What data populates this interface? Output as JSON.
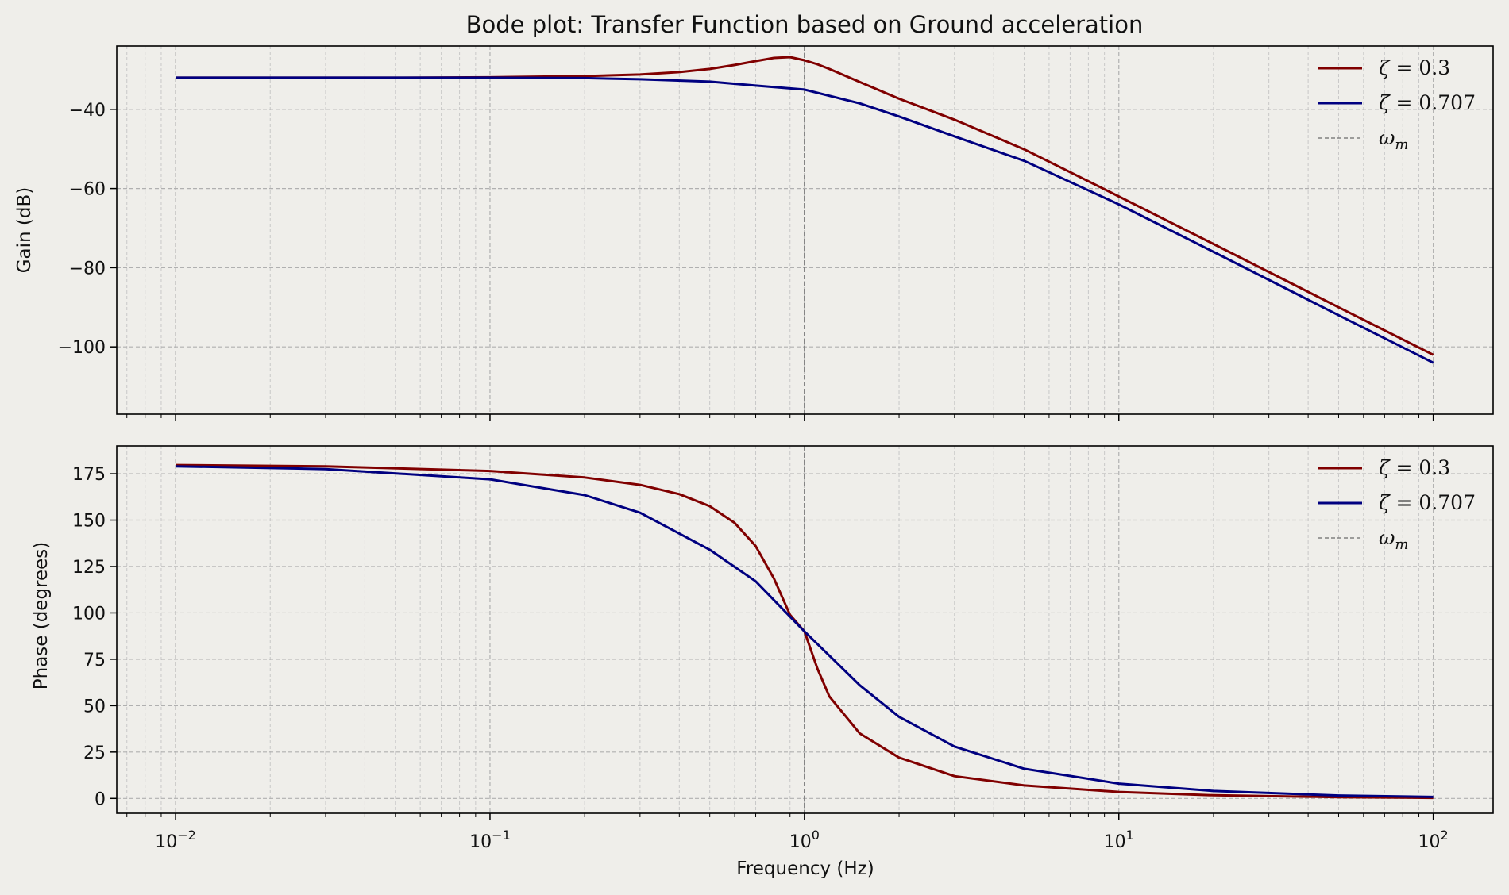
{
  "chart_data": [
    {
      "type": "line",
      "title": "Bode plot: Transfer Function based on Ground acceleration",
      "xlabel": "",
      "ylabel": "Gain (dB)",
      "xscale": "log",
      "xlim": [
        0.0065,
        155
      ],
      "ylim": [
        -117,
        -24
      ],
      "xticks": [
        {
          "value": 0.01,
          "label": "10−2"
        },
        {
          "value": 0.1,
          "label": "10−1"
        },
        {
          "value": 1,
          "label": "100"
        },
        {
          "value": 10,
          "label": "101"
        },
        {
          "value": 100,
          "label": "102"
        }
      ],
      "show_xtick_labels": false,
      "yticks": [
        {
          "value": -40,
          "label": "−40"
        },
        {
          "value": -60,
          "label": "−60"
        },
        {
          "value": -80,
          "label": "−80"
        },
        {
          "value": -100,
          "label": "−100"
        }
      ],
      "grid": true,
      "legend": "top-right",
      "vline": {
        "x": 1,
        "name": "ω_m",
        "color": "#808080"
      },
      "series": [
        {
          "name": "ζ = 0.3",
          "color": "#800000",
          "x": [
            0.01,
            0.05,
            0.1,
            0.2,
            0.3,
            0.4,
            0.5,
            0.6,
            0.7,
            0.8,
            0.9,
            1.0,
            1.1,
            1.2,
            1.5,
            2,
            3,
            5,
            10,
            20,
            50,
            100
          ],
          "y": [
            -32,
            -32,
            -31.9,
            -31.6,
            -31.2,
            -30.6,
            -29.8,
            -28.8,
            -27.8,
            -27,
            -26.8,
            -27.6,
            -28.6,
            -29.8,
            -33.1,
            -37.3,
            -42.6,
            -50.1,
            -62,
            -74,
            -90,
            -102
          ]
        },
        {
          "name": "ζ = 0.707",
          "color": "#000080",
          "x": [
            0.01,
            0.1,
            0.2,
            0.3,
            0.5,
            0.7,
            1.0,
            1.5,
            2,
            3,
            5,
            10,
            20,
            50,
            100
          ],
          "y": [
            -32,
            -32,
            -32.1,
            -32.4,
            -33,
            -34,
            -35,
            -38.5,
            -41.8,
            -46.8,
            -53,
            -64,
            -76,
            -92,
            -104
          ]
        }
      ]
    },
    {
      "type": "line",
      "title": "",
      "xlabel": "Frequency (Hz)",
      "ylabel": "Phase (degrees)",
      "xscale": "log",
      "xlim": [
        0.0065,
        155
      ],
      "ylim": [
        -8,
        190
      ],
      "xticks": [
        {
          "value": 0.01,
          "label": "10−2"
        },
        {
          "value": 0.1,
          "label": "10−1"
        },
        {
          "value": 1,
          "label": "100"
        },
        {
          "value": 10,
          "label": "101"
        },
        {
          "value": 100,
          "label": "102"
        }
      ],
      "show_xtick_labels": true,
      "yticks": [
        {
          "value": 0,
          "label": "0"
        },
        {
          "value": 25,
          "label": "25"
        },
        {
          "value": 50,
          "label": "50"
        },
        {
          "value": 75,
          "label": "75"
        },
        {
          "value": 100,
          "label": "100"
        },
        {
          "value": 125,
          "label": "125"
        },
        {
          "value": 150,
          "label": "150"
        },
        {
          "value": 175,
          "label": "175"
        }
      ],
      "grid": true,
      "legend": "top-right",
      "vline": {
        "x": 1,
        "name": "ω_m",
        "color": "#808080"
      },
      "series": [
        {
          "name": "ζ = 0.3",
          "color": "#800000",
          "x": [
            0.01,
            0.03,
            0.1,
            0.2,
            0.3,
            0.4,
            0.5,
            0.6,
            0.7,
            0.8,
            0.9,
            1.0,
            1.1,
            1.2,
            1.5,
            2,
            3,
            5,
            10,
            20,
            50,
            100
          ],
          "y": [
            179.7,
            179,
            176.5,
            173,
            169,
            164,
            157.5,
            148.5,
            136,
            118.5,
            99,
            90,
            70,
            55,
            35,
            22,
            12,
            7,
            3.5,
            1.7,
            0.7,
            0.3
          ]
        },
        {
          "name": "ζ = 0.707",
          "color": "#000080",
          "x": [
            0.01,
            0.03,
            0.1,
            0.2,
            0.3,
            0.5,
            0.7,
            1.0,
            1.5,
            2,
            3,
            5,
            10,
            20,
            50,
            100
          ],
          "y": [
            179,
            177.5,
            172,
            163.5,
            154,
            134,
            117,
            90,
            61,
            44,
            28,
            16,
            8,
            4,
            1.6,
            0.8
          ]
        }
      ]
    }
  ]
}
